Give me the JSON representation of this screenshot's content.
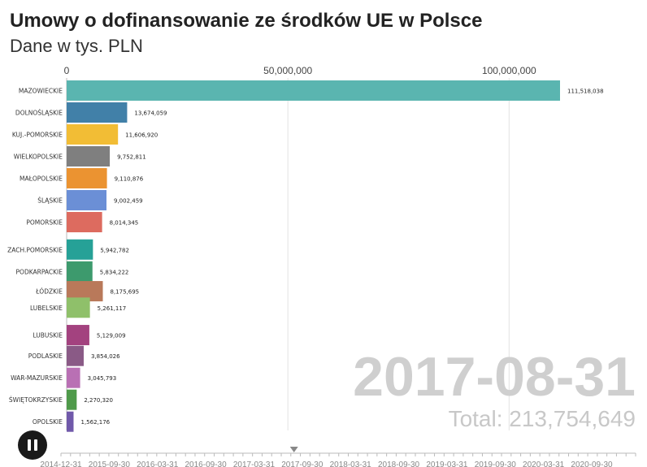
{
  "header": {
    "title": "Umowy o dofinansowanie ze środków UE w Polsce",
    "subtitle": "Dane w tys. PLN"
  },
  "overlay": {
    "date": "2017-08-31",
    "total": "Total: 213,754,649"
  },
  "controls": {
    "pause_icon": "pause-icon"
  },
  "chart_data": {
    "type": "bar",
    "orientation": "horizontal",
    "xlim": [
      0,
      111518038
    ],
    "x_ticks": [
      {
        "value": 0,
        "label": "0"
      },
      {
        "value": 50000000,
        "label": "50,000,000"
      },
      {
        "value": 100000000,
        "label": "100,000,000"
      }
    ],
    "grid": true,
    "bars": [
      {
        "name": "MAZOWIECKIE",
        "value": 111518038,
        "label": "111,518,038",
        "color": "#5ab5b0",
        "slot": 0
      },
      {
        "name": "DOLNOŚLĄSKIE",
        "value": 13674059,
        "label": "13,674,059",
        "color": "#4180a8",
        "slot": 1
      },
      {
        "name": "KUJ.-POMORSKIE",
        "value": 11606920,
        "label": "11,606,920",
        "color": "#f2bd35",
        "slot": 2
      },
      {
        "name": "WIELKOPOLSKIE",
        "value": 9752811,
        "label": "9,752,811",
        "color": "#7f7f7f",
        "slot": 3
      },
      {
        "name": "MAŁOPOLSKIE",
        "value": 9110876,
        "label": "9,110,876",
        "color": "#eb9331",
        "slot": 4
      },
      {
        "name": "ŚLĄSKIE",
        "value": 9002459,
        "label": "9,002,459",
        "color": "#6b8fd6",
        "slot": 5
      },
      {
        "name": "POMORSKIE",
        "value": 8014345,
        "label": "8,014,345",
        "color": "#dd6b5f",
        "slot": 6
      },
      {
        "name": "ZACH.POMORSKIE",
        "value": 5942782,
        "label": "5,942,782",
        "color": "#26a197",
        "slot": 7.25
      },
      {
        "name": "PODKARPACKIE",
        "value": 5834222,
        "label": "5,834,222",
        "color": "#3d9a6d",
        "slot": 8.25
      },
      {
        "name": "ŁÓDZKIE",
        "value": 8175695,
        "label": "8,175,695",
        "color": "#b9795a",
        "slot": 9.15
      },
      {
        "name": "LUBELSKIE",
        "value": 5261117,
        "label": "5,261,117",
        "color": "#8fc06a",
        "slot": 9.9
      },
      {
        "name": "LUBUSKIE",
        "value": 5129009,
        "label": "5,129,009",
        "color": "#a3427f",
        "slot": 11.15
      },
      {
        "name": "PODLASKIE",
        "value": 3854026,
        "label": "3,854,026",
        "color": "#8a5a86",
        "slot": 12.1
      },
      {
        "name": "WAR-MAZURSKIE",
        "value": 3045793,
        "label": "3,045,793",
        "color": "#b970b4",
        "slot": 13.1
      },
      {
        "name": "ŚWIĘTOKRZYSKIE",
        "value": 2270320,
        "label": "2,270,320",
        "color": "#4f9a4a",
        "slot": 14.1
      },
      {
        "name": "OPOLSKIE",
        "value": 1562176,
        "label": "1,562,176",
        "color": "#7059aa",
        "slot": 15.1
      }
    ],
    "timeline": {
      "labels": [
        "2014-12-31",
        "2015-09-30",
        "2016-03-31",
        "2016-09-30",
        "2017-03-31",
        "2017-09-30",
        "2018-03-31",
        "2018-09-30",
        "2019-03-31",
        "2019-09-30",
        "2020-03-31",
        "2020-09-30"
      ],
      "current": "2017-08-31"
    }
  }
}
